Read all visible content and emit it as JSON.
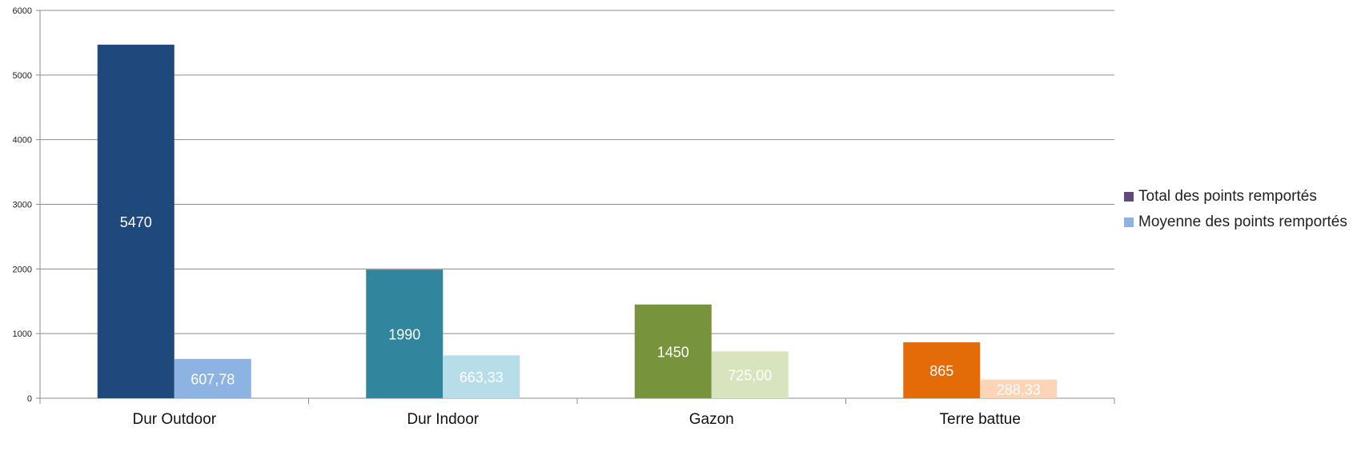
{
  "chart_data": {
    "type": "bar",
    "categories": [
      "Dur Outdoor",
      "Dur Indoor",
      "Gazon",
      "Terre battue"
    ],
    "series": [
      {
        "name": "Total des points remportés",
        "values": [
          5470,
          1990,
          1450,
          865
        ],
        "labels": [
          "5470",
          "1990",
          "1450",
          "865"
        ],
        "colors": [
          "#1f497d",
          "#31859c",
          "#77933c",
          "#e36c09"
        ],
        "legend_color": "#604a7b"
      },
      {
        "name": "Moyenne des points remportés",
        "values": [
          607.78,
          663.33,
          725.0,
          288.33
        ],
        "labels": [
          "607,78",
          "663,33",
          "725,00",
          "288,33"
        ],
        "colors": [
          "#8db3e2",
          "#b7dde8",
          "#d7e4bd",
          "#fbd5b5"
        ],
        "legend_color": "#8db3e2"
      }
    ],
    "ylim": [
      0,
      6000
    ],
    "yticks": [
      0,
      1000,
      2000,
      3000,
      4000,
      5000,
      6000
    ],
    "grid": true,
    "legend_position": "right",
    "title": "",
    "xlabel": "",
    "ylabel": ""
  }
}
